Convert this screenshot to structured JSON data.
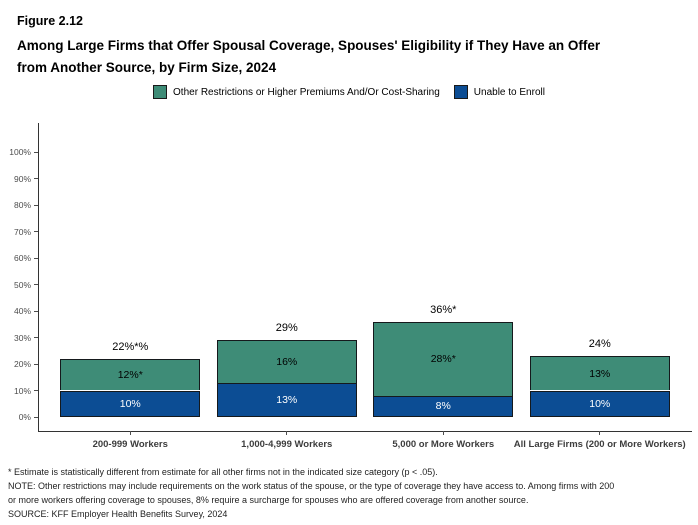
{
  "header": {
    "figure_label": "Figure 2.12",
    "title_line1": "Among Large Firms that Offer Spousal Coverage, Spouses' Eligibility if They Have an Offer",
    "title_line2": "from Another Source, by Firm Size, 2024"
  },
  "legend": {
    "items": [
      {
        "label": "Other Restrictions or Higher Premiums And/Or Cost-Sharing",
        "color": "#3E8C77"
      },
      {
        "label": "Unable to Enroll",
        "color": "#0C4D94"
      }
    ]
  },
  "chart_data": {
    "type": "bar",
    "stacked": true,
    "title": "Among Large Firms that Offer Spousal Coverage, Spouses' Eligibility if They Have an Offer from Another Source, by Firm Size, 2024",
    "categories": [
      "200-999 Workers",
      "1,000-4,999 Workers",
      "5,000 or More Workers",
      "All Large Firms (200 or More Workers)"
    ],
    "series": [
      {
        "name": "Unable to Enroll",
        "color": "#0C4D94",
        "text_color": "#FFFFFF",
        "values": [
          10,
          13,
          8,
          10
        ],
        "labels": [
          "10%",
          "13%",
          "8%",
          "10%"
        ]
      },
      {
        "name": "Other Restrictions or Higher Premiums And/Or Cost-Sharing",
        "color": "#3E8C77",
        "text_color": "#000000",
        "values": [
          12,
          16,
          28,
          13
        ],
        "labels": [
          "12%*",
          "16%",
          "28%*",
          "13%"
        ]
      }
    ],
    "totals": [
      "22%*%",
      "29%",
      "36%*",
      "24%"
    ],
    "xlabel": "",
    "ylabel": "",
    "ylim": [
      0,
      100
    ],
    "ytick_labels": [
      "0%",
      "10%",
      "20%",
      "30%",
      "40%",
      "50%",
      "60%",
      "70%",
      "80%",
      "90%",
      "100%"
    ],
    "grid": false,
    "legend_position": "top"
  },
  "footnotes": {
    "lines": [
      "* Estimate is statistically different from estimate for all other firms not in the indicated size category (p < .05).",
      "NOTE: Other restrictions may include requirements on the work status of the spouse, or the type of coverage they have access to. Among firms with 200",
      "or more workers offering coverage to spouses, 8% require a surcharge for spouses who are offered coverage from another source.",
      "SOURCE: KFF Employer Health Benefits Survey, 2024"
    ]
  }
}
